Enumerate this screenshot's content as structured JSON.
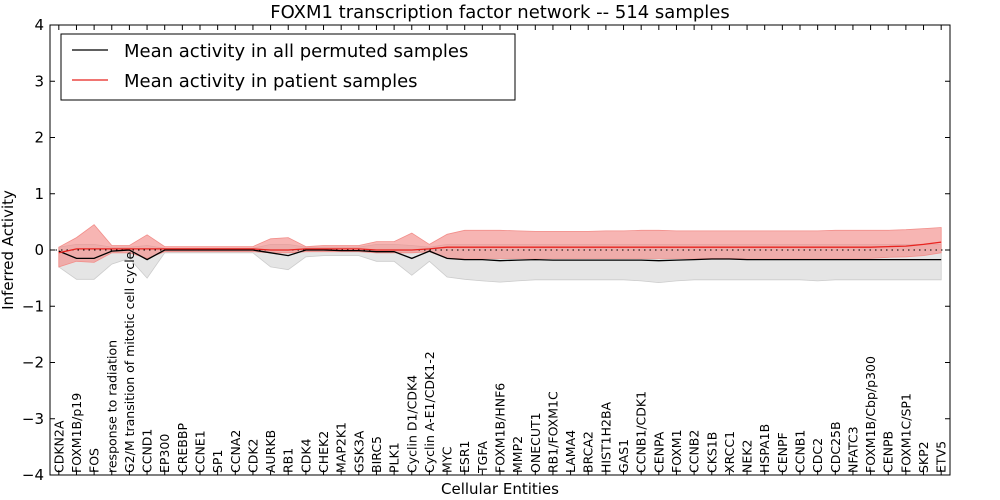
{
  "chart_data": {
    "type": "line",
    "title": "FOXM1 transcription factor network -- 514 samples",
    "xlabel": "Cellular Entities",
    "ylabel": "Inferred Activity",
    "ylim": [
      -4,
      4
    ],
    "yticks": [
      -4,
      -3,
      -2,
      -1,
      0,
      1,
      2,
      3,
      4
    ],
    "ytick_labels": [
      "−4",
      "−3",
      "−2",
      "−1",
      "0",
      "1",
      "2",
      "3",
      "4"
    ],
    "legend_position": "top-left",
    "categories": [
      "CDKN2A",
      "FOXM1B/p19",
      "FOS",
      "response to radiation",
      "G2/M transition of mitotic cell cycle",
      "CCND1",
      "EP300",
      "CREBBP",
      "CCNE1",
      "SP1",
      "CCNA2",
      "CDK2",
      "AURKB",
      "RB1",
      "CDK4",
      "CHEK2",
      "MAP2K1",
      "GSK3A",
      "BIRC5",
      "PLK1",
      "Cyclin D1/CDK4",
      "Cyclin A-E1/CDK1-2",
      "MYC",
      "ESR1",
      "TGFA",
      "FOXM1B/HNF6",
      "MMP2",
      "ONECUT1",
      "RB1/FOXM1C",
      "LAMA4",
      "BRCA2",
      "HIST1H2BA",
      "GAS1",
      "CCNB1/CDK1",
      "CENPA",
      "FOXM1",
      "CCNB2",
      "CKS1B",
      "XRCC1",
      "NEK2",
      "HSPA1B",
      "CENPF",
      "CCNB1",
      "CDC2",
      "CDC25B",
      "NFATC3",
      "FOXM1B/Cbp/p300",
      "CENPB",
      "FOXM1C/SP1",
      "SKP2",
      "ETV5"
    ],
    "series": [
      {
        "name": "Mean activity in all permuted samples",
        "color": "#000000",
        "band_color": "#cccccc",
        "values": [
          -0.02,
          -0.15,
          -0.15,
          -0.02,
          0.0,
          -0.17,
          0.0,
          0.0,
          0.0,
          0.0,
          0.0,
          0.0,
          -0.05,
          -0.1,
          0.0,
          0.0,
          -0.01,
          -0.01,
          -0.03,
          -0.03,
          -0.15,
          -0.02,
          -0.15,
          -0.17,
          -0.17,
          -0.19,
          -0.18,
          -0.17,
          -0.18,
          -0.18,
          -0.18,
          -0.18,
          -0.18,
          -0.18,
          -0.19,
          -0.18,
          -0.17,
          -0.16,
          -0.16,
          -0.17,
          -0.17,
          -0.17,
          -0.17,
          -0.17,
          -0.17,
          -0.17,
          -0.17,
          -0.17,
          -0.17,
          -0.17,
          -0.17
        ],
        "lower": [
          -0.3,
          -0.52,
          -0.52,
          -0.25,
          -0.15,
          -0.5,
          -0.05,
          -0.05,
          -0.05,
          -0.05,
          -0.05,
          -0.05,
          -0.3,
          -0.35,
          -0.12,
          -0.1,
          -0.1,
          -0.1,
          -0.2,
          -0.2,
          -0.45,
          -0.2,
          -0.48,
          -0.52,
          -0.55,
          -0.57,
          -0.55,
          -0.53,
          -0.53,
          -0.53,
          -0.53,
          -0.53,
          -0.53,
          -0.55,
          -0.58,
          -0.55,
          -0.53,
          -0.53,
          -0.53,
          -0.53,
          -0.53,
          -0.53,
          -0.53,
          -0.55,
          -0.53,
          -0.53,
          -0.53,
          -0.53,
          -0.53,
          -0.53,
          -0.53
        ],
        "upper": [
          0.05,
          0.1,
          0.1,
          0.05,
          0.05,
          0.08,
          0.03,
          0.03,
          0.03,
          0.03,
          0.03,
          0.03,
          0.1,
          0.1,
          0.05,
          0.05,
          0.05,
          0.05,
          0.1,
          0.1,
          0.08,
          0.05,
          0.1,
          0.1,
          0.1,
          0.1,
          0.1,
          0.1,
          0.1,
          0.1,
          0.1,
          0.1,
          0.1,
          0.1,
          0.1,
          0.1,
          0.1,
          0.1,
          0.1,
          0.1,
          0.1,
          0.1,
          0.1,
          0.1,
          0.1,
          0.1,
          0.1,
          0.1,
          0.1,
          0.1,
          0.1
        ]
      },
      {
        "name": "Mean activity in patient samples",
        "color": "#e8231f",
        "band_color": "#f28e8a",
        "values": [
          -0.05,
          0.02,
          0.02,
          0.02,
          0.02,
          0.02,
          0.02,
          0.02,
          0.02,
          0.02,
          0.02,
          0.02,
          0.0,
          0.0,
          0.02,
          0.02,
          0.02,
          0.02,
          0.0,
          0.0,
          0.0,
          0.02,
          0.05,
          0.05,
          0.05,
          0.05,
          0.05,
          0.05,
          0.05,
          0.05,
          0.05,
          0.05,
          0.05,
          0.05,
          0.05,
          0.05,
          0.05,
          0.05,
          0.05,
          0.05,
          0.05,
          0.05,
          0.05,
          0.05,
          0.05,
          0.05,
          0.05,
          0.06,
          0.07,
          0.1,
          0.14
        ],
        "lower": [
          -0.3,
          -0.2,
          -0.22,
          -0.05,
          -0.05,
          -0.15,
          -0.03,
          -0.03,
          -0.03,
          -0.03,
          -0.03,
          -0.03,
          -0.05,
          -0.05,
          -0.03,
          -0.03,
          -0.03,
          -0.03,
          -0.05,
          -0.05,
          -0.05,
          -0.03,
          -0.15,
          -0.15,
          -0.15,
          -0.15,
          -0.15,
          -0.15,
          -0.15,
          -0.15,
          -0.15,
          -0.15,
          -0.15,
          -0.15,
          -0.15,
          -0.15,
          -0.15,
          -0.15,
          -0.15,
          -0.15,
          -0.15,
          -0.15,
          -0.15,
          -0.15,
          -0.15,
          -0.15,
          -0.15,
          -0.13,
          -0.12,
          -0.1,
          -0.05
        ],
        "upper": [
          0.05,
          0.22,
          0.45,
          0.08,
          0.08,
          0.27,
          0.06,
          0.06,
          0.06,
          0.06,
          0.06,
          0.06,
          0.2,
          0.22,
          0.06,
          0.08,
          0.08,
          0.08,
          0.15,
          0.15,
          0.3,
          0.1,
          0.28,
          0.35,
          0.35,
          0.35,
          0.34,
          0.33,
          0.33,
          0.33,
          0.33,
          0.34,
          0.34,
          0.35,
          0.35,
          0.34,
          0.34,
          0.34,
          0.34,
          0.34,
          0.34,
          0.34,
          0.34,
          0.34,
          0.35,
          0.35,
          0.35,
          0.35,
          0.36,
          0.38,
          0.4
        ]
      }
    ]
  }
}
